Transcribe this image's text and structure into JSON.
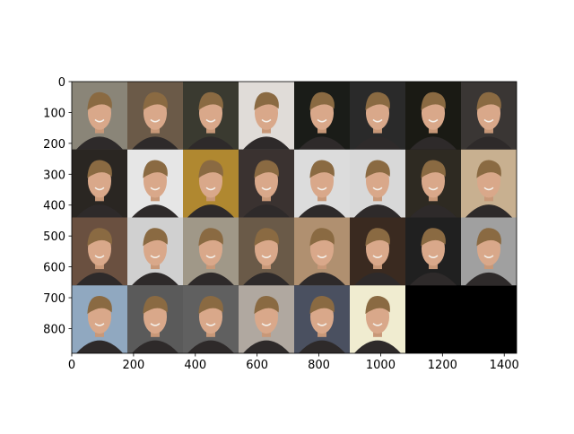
{
  "chart_data": {
    "type": "image",
    "xlim": [
      0,
      1440
    ],
    "ylim": [
      880,
      0
    ],
    "xticks": [
      0,
      200,
      400,
      600,
      800,
      1000,
      1200,
      1400
    ],
    "yticks": [
      0,
      100,
      200,
      300,
      400,
      500,
      600,
      700,
      800
    ]
  }
}
